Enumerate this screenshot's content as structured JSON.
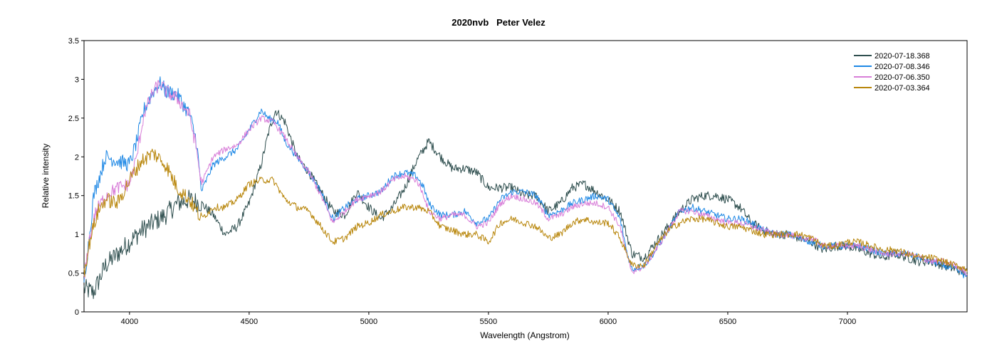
{
  "chart_data": {
    "type": "line",
    "title": "2020nvb   Peter Velez",
    "xlabel": "Wavelength (Angstrom)",
    "ylabel": "Relative intensity",
    "xlim": [
      3810,
      7500
    ],
    "ylim": [
      0,
      3.5
    ],
    "xticks": [
      4000,
      4500,
      5000,
      5500,
      6000,
      6500,
      7000
    ],
    "yticks": [
      0,
      0.5,
      1,
      1.5,
      2,
      2.5,
      3,
      3.5
    ],
    "ytick_labels": [
      "0",
      "0.5",
      "1",
      "1.5",
      "2",
      "2.5",
      "3",
      "3.5"
    ],
    "grid": false,
    "legend_position": "top-right",
    "series": [
      {
        "name": "2020-07-18.368",
        "color": "#2f4f4f",
        "noise": 0.06,
        "points": [
          [
            3810,
            0.3
          ],
          [
            3850,
            0.25
          ],
          [
            3900,
            0.6
          ],
          [
            3950,
            0.75
          ],
          [
            4000,
            0.9
          ],
          [
            4050,
            1.05
          ],
          [
            4100,
            1.15
          ],
          [
            4150,
            1.25
          ],
          [
            4200,
            1.4
          ],
          [
            4250,
            1.45
          ],
          [
            4300,
            1.4
          ],
          [
            4350,
            1.25
          ],
          [
            4400,
            1.0
          ],
          [
            4450,
            1.1
          ],
          [
            4500,
            1.4
          ],
          [
            4550,
            1.9
          ],
          [
            4580,
            2.3
          ],
          [
            4610,
            2.6
          ],
          [
            4650,
            2.45
          ],
          [
            4700,
            2.0
          ],
          [
            4750,
            1.8
          ],
          [
            4800,
            1.55
          ],
          [
            4850,
            1.3
          ],
          [
            4900,
            1.25
          ],
          [
            4950,
            1.55
          ],
          [
            5000,
            1.35
          ],
          [
            5050,
            1.2
          ],
          [
            5100,
            1.35
          ],
          [
            5150,
            1.6
          ],
          [
            5200,
            1.95
          ],
          [
            5250,
            2.2
          ],
          [
            5300,
            2.0
          ],
          [
            5350,
            1.85
          ],
          [
            5400,
            1.85
          ],
          [
            5450,
            1.8
          ],
          [
            5500,
            1.6
          ],
          [
            5550,
            1.6
          ],
          [
            5600,
            1.6
          ],
          [
            5650,
            1.5
          ],
          [
            5700,
            1.5
          ],
          [
            5750,
            1.3
          ],
          [
            5800,
            1.4
          ],
          [
            5850,
            1.6
          ],
          [
            5900,
            1.65
          ],
          [
            5950,
            1.55
          ],
          [
            6000,
            1.45
          ],
          [
            6050,
            1.3
          ],
          [
            6100,
            0.75
          ],
          [
            6150,
            0.7
          ],
          [
            6200,
            0.9
          ],
          [
            6250,
            1.1
          ],
          [
            6300,
            1.3
          ],
          [
            6350,
            1.45
          ],
          [
            6400,
            1.5
          ],
          [
            6450,
            1.5
          ],
          [
            6500,
            1.45
          ],
          [
            6550,
            1.35
          ],
          [
            6600,
            1.15
          ],
          [
            6650,
            1.05
          ],
          [
            6700,
            1.0
          ],
          [
            6750,
            1.0
          ],
          [
            6800,
            0.95
          ],
          [
            6850,
            0.9
          ],
          [
            6900,
            0.8
          ],
          [
            6950,
            0.85
          ],
          [
            7000,
            0.85
          ],
          [
            7050,
            0.8
          ],
          [
            7100,
            0.75
          ],
          [
            7150,
            0.7
          ],
          [
            7200,
            0.75
          ],
          [
            7250,
            0.7
          ],
          [
            7300,
            0.65
          ],
          [
            7350,
            0.65
          ],
          [
            7400,
            0.6
          ],
          [
            7450,
            0.55
          ],
          [
            7500,
            0.5
          ]
        ]
      },
      {
        "name": "2020-07-08.346",
        "color": "#1e88e5",
        "noise": 0.045,
        "points": [
          [
            3810,
            0.4
          ],
          [
            3830,
            0.9
          ],
          [
            3850,
            1.5
          ],
          [
            3880,
            1.8
          ],
          [
            3900,
            2.0
          ],
          [
            3950,
            1.95
          ],
          [
            4000,
            1.9
          ],
          [
            4030,
            2.2
          ],
          [
            4060,
            2.6
          ],
          [
            4100,
            2.85
          ],
          [
            4130,
            2.95
          ],
          [
            4150,
            2.85
          ],
          [
            4200,
            2.8
          ],
          [
            4250,
            2.55
          ],
          [
            4280,
            2.2
          ],
          [
            4300,
            1.55
          ],
          [
            4350,
            1.9
          ],
          [
            4400,
            2.0
          ],
          [
            4450,
            2.1
          ],
          [
            4500,
            2.35
          ],
          [
            4550,
            2.6
          ],
          [
            4580,
            2.5
          ],
          [
            4620,
            2.45
          ],
          [
            4650,
            2.2
          ],
          [
            4700,
            2.0
          ],
          [
            4750,
            1.8
          ],
          [
            4800,
            1.55
          ],
          [
            4850,
            1.2
          ],
          [
            4900,
            1.35
          ],
          [
            4950,
            1.45
          ],
          [
            5000,
            1.5
          ],
          [
            5050,
            1.55
          ],
          [
            5100,
            1.75
          ],
          [
            5150,
            1.8
          ],
          [
            5200,
            1.75
          ],
          [
            5230,
            1.6
          ],
          [
            5250,
            1.4
          ],
          [
            5300,
            1.25
          ],
          [
            5350,
            1.25
          ],
          [
            5400,
            1.3
          ],
          [
            5450,
            1.15
          ],
          [
            5500,
            1.2
          ],
          [
            5550,
            1.45
          ],
          [
            5600,
            1.55
          ],
          [
            5650,
            1.55
          ],
          [
            5700,
            1.5
          ],
          [
            5750,
            1.25
          ],
          [
            5800,
            1.3
          ],
          [
            5850,
            1.4
          ],
          [
            5900,
            1.45
          ],
          [
            5950,
            1.5
          ],
          [
            6000,
            1.45
          ],
          [
            6050,
            1.2
          ],
          [
            6080,
            0.75
          ],
          [
            6100,
            0.55
          ],
          [
            6150,
            0.6
          ],
          [
            6200,
            0.8
          ],
          [
            6250,
            1.05
          ],
          [
            6300,
            1.3
          ],
          [
            6350,
            1.35
          ],
          [
            6400,
            1.3
          ],
          [
            6450,
            1.25
          ],
          [
            6500,
            1.2
          ],
          [
            6550,
            1.2
          ],
          [
            6600,
            1.15
          ],
          [
            6650,
            1.05
          ],
          [
            6700,
            1.0
          ],
          [
            6750,
            1.0
          ],
          [
            6800,
            0.95
          ],
          [
            6850,
            0.9
          ],
          [
            6900,
            0.85
          ],
          [
            6950,
            0.85
          ],
          [
            7000,
            0.85
          ],
          [
            7050,
            0.85
          ],
          [
            7100,
            0.8
          ],
          [
            7150,
            0.75
          ],
          [
            7200,
            0.75
          ],
          [
            7250,
            0.75
          ],
          [
            7300,
            0.7
          ],
          [
            7350,
            0.65
          ],
          [
            7400,
            0.6
          ],
          [
            7450,
            0.55
          ],
          [
            7500,
            0.45
          ]
        ]
      },
      {
        "name": "2020-07-06.350",
        "color": "#d87ed8",
        "noise": 0.04,
        "points": [
          [
            3810,
            0.4
          ],
          [
            3830,
            0.9
          ],
          [
            3860,
            1.3
          ],
          [
            3900,
            1.5
          ],
          [
            3950,
            1.6
          ],
          [
            4000,
            1.65
          ],
          [
            4030,
            2.0
          ],
          [
            4060,
            2.55
          ],
          [
            4100,
            2.85
          ],
          [
            4130,
            2.95
          ],
          [
            4150,
            2.85
          ],
          [
            4200,
            2.75
          ],
          [
            4250,
            2.55
          ],
          [
            4280,
            2.1
          ],
          [
            4300,
            1.65
          ],
          [
            4350,
            2.0
          ],
          [
            4400,
            2.1
          ],
          [
            4450,
            2.15
          ],
          [
            4500,
            2.35
          ],
          [
            4550,
            2.5
          ],
          [
            4600,
            2.45
          ],
          [
            4650,
            2.25
          ],
          [
            4700,
            2.0
          ],
          [
            4750,
            1.8
          ],
          [
            4800,
            1.5
          ],
          [
            4850,
            1.15
          ],
          [
            4900,
            1.3
          ],
          [
            4950,
            1.45
          ],
          [
            5000,
            1.5
          ],
          [
            5050,
            1.55
          ],
          [
            5100,
            1.7
          ],
          [
            5150,
            1.75
          ],
          [
            5200,
            1.7
          ],
          [
            5230,
            1.5
          ],
          [
            5250,
            1.3
          ],
          [
            5300,
            1.2
          ],
          [
            5350,
            1.25
          ],
          [
            5400,
            1.25
          ],
          [
            5450,
            1.1
          ],
          [
            5500,
            1.15
          ],
          [
            5550,
            1.4
          ],
          [
            5600,
            1.5
          ],
          [
            5650,
            1.45
          ],
          [
            5700,
            1.4
          ],
          [
            5750,
            1.2
          ],
          [
            5800,
            1.25
          ],
          [
            5850,
            1.35
          ],
          [
            5900,
            1.4
          ],
          [
            5950,
            1.4
          ],
          [
            6000,
            1.35
          ],
          [
            6050,
            1.1
          ],
          [
            6080,
            0.7
          ],
          [
            6100,
            0.52
          ],
          [
            6150,
            0.58
          ],
          [
            6200,
            0.8
          ],
          [
            6250,
            1.05
          ],
          [
            6300,
            1.3
          ],
          [
            6350,
            1.3
          ],
          [
            6400,
            1.25
          ],
          [
            6450,
            1.2
          ],
          [
            6500,
            1.15
          ],
          [
            6550,
            1.15
          ],
          [
            6600,
            1.1
          ],
          [
            6650,
            1.05
          ],
          [
            6700,
            1.0
          ],
          [
            6750,
            1.0
          ],
          [
            6800,
            0.95
          ],
          [
            6850,
            0.95
          ],
          [
            6900,
            0.85
          ],
          [
            6950,
            0.85
          ],
          [
            7000,
            0.85
          ],
          [
            7050,
            0.85
          ],
          [
            7100,
            0.8
          ],
          [
            7150,
            0.75
          ],
          [
            7200,
            0.75
          ],
          [
            7250,
            0.75
          ],
          [
            7300,
            0.7
          ],
          [
            7350,
            0.65
          ],
          [
            7400,
            0.65
          ],
          [
            7450,
            0.6
          ],
          [
            7500,
            0.5
          ]
        ]
      },
      {
        "name": "2020-07-03.364",
        "color": "#b8860b",
        "noise": 0.045,
        "points": [
          [
            3810,
            0.5
          ],
          [
            3840,
            1.0
          ],
          [
            3870,
            1.3
          ],
          [
            3900,
            1.45
          ],
          [
            3950,
            1.4
          ],
          [
            4000,
            1.7
          ],
          [
            4050,
            1.95
          ],
          [
            4100,
            2.05
          ],
          [
            4150,
            1.9
          ],
          [
            4200,
            1.6
          ],
          [
            4250,
            1.45
          ],
          [
            4300,
            1.2
          ],
          [
            4350,
            1.35
          ],
          [
            4400,
            1.35
          ],
          [
            4450,
            1.45
          ],
          [
            4500,
            1.65
          ],
          [
            4550,
            1.7
          ],
          [
            4600,
            1.7
          ],
          [
            4650,
            1.45
          ],
          [
            4700,
            1.35
          ],
          [
            4750,
            1.3
          ],
          [
            4800,
            1.1
          ],
          [
            4850,
            0.9
          ],
          [
            4900,
            0.95
          ],
          [
            4950,
            1.1
          ],
          [
            5000,
            1.15
          ],
          [
            5050,
            1.25
          ],
          [
            5100,
            1.3
          ],
          [
            5150,
            1.35
          ],
          [
            5200,
            1.35
          ],
          [
            5250,
            1.3
          ],
          [
            5300,
            1.1
          ],
          [
            5350,
            1.05
          ],
          [
            5400,
            1.0
          ],
          [
            5450,
            1.0
          ],
          [
            5500,
            0.9
          ],
          [
            5550,
            1.15
          ],
          [
            5600,
            1.2
          ],
          [
            5650,
            1.15
          ],
          [
            5700,
            1.1
          ],
          [
            5750,
            0.95
          ],
          [
            5800,
            1.0
          ],
          [
            5850,
            1.15
          ],
          [
            5900,
            1.2
          ],
          [
            5950,
            1.15
          ],
          [
            6000,
            1.15
          ],
          [
            6050,
            0.95
          ],
          [
            6100,
            0.6
          ],
          [
            6150,
            0.6
          ],
          [
            6200,
            0.85
          ],
          [
            6250,
            1.05
          ],
          [
            6300,
            1.15
          ],
          [
            6350,
            1.2
          ],
          [
            6400,
            1.2
          ],
          [
            6450,
            1.15
          ],
          [
            6500,
            1.1
          ],
          [
            6550,
            1.1
          ],
          [
            6600,
            1.05
          ],
          [
            6650,
            1.0
          ],
          [
            6700,
            1.0
          ],
          [
            6750,
            1.0
          ],
          [
            6800,
            1.0
          ],
          [
            6850,
            0.95
          ],
          [
            6900,
            0.85
          ],
          [
            6950,
            0.85
          ],
          [
            7000,
            0.9
          ],
          [
            7050,
            0.9
          ],
          [
            7100,
            0.85
          ],
          [
            7150,
            0.8
          ],
          [
            7200,
            0.8
          ],
          [
            7250,
            0.75
          ],
          [
            7300,
            0.7
          ],
          [
            7350,
            0.7
          ],
          [
            7400,
            0.65
          ],
          [
            7450,
            0.6
          ],
          [
            7500,
            0.55
          ]
        ]
      }
    ]
  }
}
